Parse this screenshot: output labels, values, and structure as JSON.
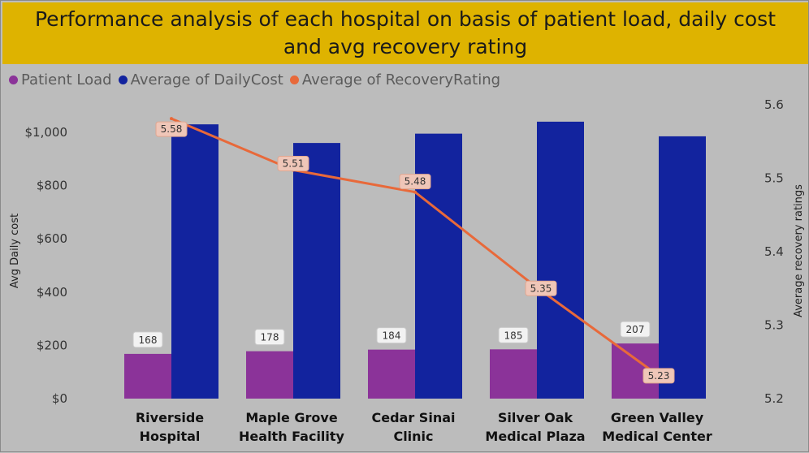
{
  "title": "Performance analysis of each hospital on basis of patient load, daily cost and avg recovery rating",
  "legend": [
    {
      "label": "Patient Load",
      "color": "#8b3399"
    },
    {
      "label": "Average of DailyCost",
      "color": "#12239e"
    },
    {
      "label": "Average of RecoveryRating",
      "color": "#e8693a"
    }
  ],
  "chart_data": {
    "type": "bar",
    "title": "Performance analysis of each hospital on basis of patient load, daily cost and avg recovery rating",
    "categories": [
      [
        "Riverside",
        "Hospital"
      ],
      [
        "Maple Grove",
        "Health Facility"
      ],
      [
        "Cedar Sinai",
        "Clinic"
      ],
      [
        "Silver Oak",
        "Medical Plaza"
      ],
      [
        "Green Valley",
        "Medical Center"
      ]
    ],
    "series": [
      {
        "name": "Patient Load",
        "kind": "bar",
        "axis": "left",
        "color": "#8b3399",
        "values": [
          168,
          178,
          184,
          185,
          207
        ],
        "labels": [
          "168",
          "178",
          "184",
          "185",
          "207"
        ]
      },
      {
        "name": "Average of DailyCost",
        "kind": "bar",
        "axis": "left",
        "color": "#12239e",
        "values": [
          1030,
          960,
          995,
          1040,
          985
        ]
      },
      {
        "name": "Average of RecoveryRating",
        "kind": "line",
        "axis": "right",
        "color": "#e8693a",
        "values": [
          5.58,
          5.51,
          5.48,
          5.35,
          5.23
        ],
        "labels": [
          "5.58",
          "5.51",
          "5.48",
          "5.35",
          "5.23"
        ]
      }
    ],
    "ylabel": "Avg Daily cost",
    "y2label": "Average recovery ratings",
    "ylim": [
      0,
      1130
    ],
    "y2lim": [
      5.2,
      5.6
    ],
    "yticks": [
      0,
      200,
      400,
      600,
      800,
      1000
    ],
    "ytick_labels": [
      "$0",
      "$200",
      "$400",
      "$600",
      "$800",
      "$1,000"
    ],
    "y2ticks": [
      5.2,
      5.3,
      5.4,
      5.5,
      5.6
    ],
    "y2tick_labels": [
      "5.2",
      "5.3",
      "5.4",
      "5.5",
      "5.6"
    ],
    "grid": false,
    "legend_position": "top-left"
  }
}
